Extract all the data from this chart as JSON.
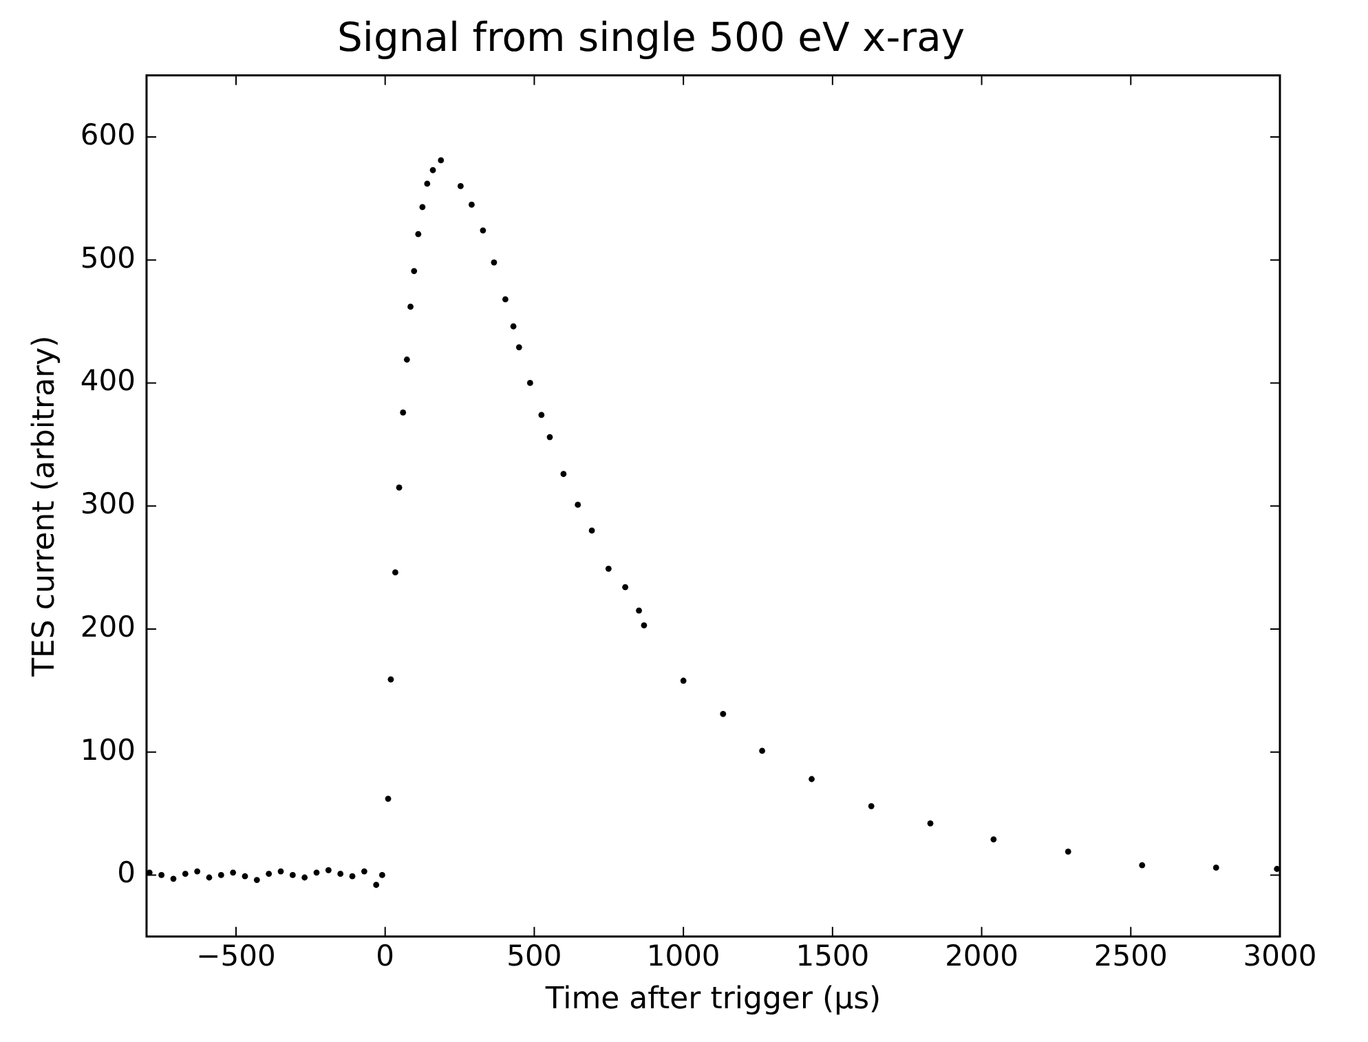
{
  "chart_data": {
    "type": "scatter",
    "title": "Signal from single 500 eV x-ray",
    "xlabel": "Time after trigger (μs)",
    "ylabel": "TES current (arbitrary)",
    "series": [
      {
        "color": "#000000",
        "x": [
          -790,
          -750,
          -710,
          -670,
          -630,
          -590,
          -550,
          -510,
          -470,
          -430,
          -390,
          -350,
          -310,
          -270,
          -230,
          -190,
          -150,
          -110,
          -70,
          -30,
          -10,
          10,
          19,
          34,
          47,
          60,
          73,
          85,
          97,
          111,
          125,
          141,
          160,
          187,
          253,
          290,
          328,
          365,
          403,
          430,
          449,
          486,
          524,
          552,
          598,
          646,
          693,
          749,
          805,
          851,
          868,
          1000,
          1133,
          1264,
          1430,
          1630,
          1828,
          2040,
          2290,
          2538,
          2786,
          2990
        ],
        "values": [
          2,
          0,
          -3,
          1,
          3,
          -2,
          0,
          2,
          -1,
          -4,
          1,
          3,
          0,
          -2,
          2,
          4,
          1,
          -1,
          3,
          -8,
          0,
          62,
          159,
          246,
          315,
          376,
          419,
          462,
          491,
          521,
          543,
          562,
          573,
          581,
          560,
          545,
          524,
          498,
          468,
          446,
          429,
          400,
          374,
          356,
          326,
          301,
          280,
          249,
          234,
          215,
          203,
          158,
          131,
          101,
          78,
          56,
          42,
          29,
          19,
          8,
          6,
          5
        ]
      }
    ],
    "xlim": [
      -800,
      3000
    ],
    "xticks": [
      -500,
      0,
      500,
      1000,
      1500,
      2000,
      2500,
      3000
    ],
    "ylim": [
      -50,
      650
    ],
    "yticks": [
      0,
      100,
      200,
      300,
      400,
      500,
      600
    ],
    "grid": false,
    "legend": false,
    "marker": "circle"
  }
}
